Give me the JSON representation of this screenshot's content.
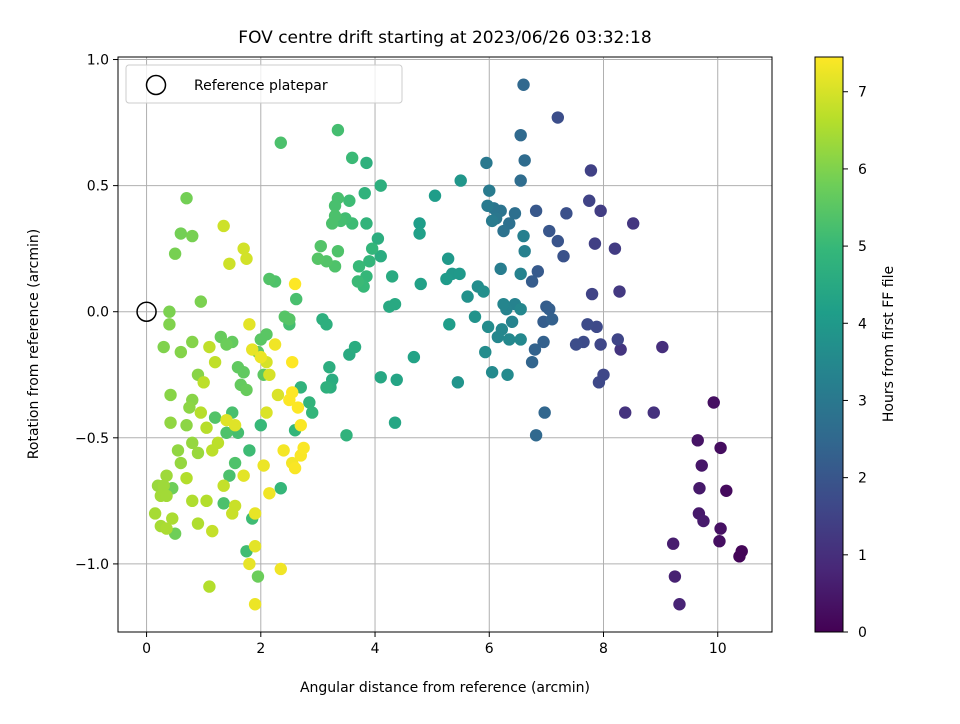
{
  "chart_data": {
    "type": "scatter",
    "title": "FOV centre drift starting at 2023/06/26 03:32:18",
    "xlabel": "Angular distance from reference (arcmin)",
    "ylabel": "Rotation from reference (arcmin)",
    "xlim": [
      -0.5,
      10.95
    ],
    "ylim": [
      -1.27,
      1.01
    ],
    "xticks": [
      0,
      2,
      4,
      6,
      8,
      10
    ],
    "xtick_labels": [
      "0",
      "2",
      "4",
      "6",
      "8",
      "10"
    ],
    "yticks": [
      -1.0,
      -0.5,
      0.0,
      0.5,
      1.0
    ],
    "ytick_labels": [
      "−1.0",
      "−0.5",
      "0.0",
      "0.5",
      "1.0"
    ],
    "grid": true,
    "legend": {
      "placement": "top-left",
      "entries": [
        "Reference platepar"
      ]
    },
    "reference_point": {
      "x": 0,
      "y": 0,
      "label": "Reference platepar"
    },
    "colorbar": {
      "label": "Hours from first FF file",
      "range": [
        0,
        7.45
      ],
      "ticks": [
        0,
        1,
        2,
        3,
        4,
        5,
        6,
        7
      ],
      "tick_labels": [
        "0",
        "1",
        "2",
        "3",
        "4",
        "5",
        "6",
        "7"
      ],
      "colormap": "viridis",
      "colors": [
        "#440154",
        "#482878",
        "#3e4989",
        "#31688e",
        "#26828e",
        "#1f9e89",
        "#35b779",
        "#6ece58",
        "#b5de2b",
        "#fde725"
      ]
    },
    "points": [
      [
        10.38,
        -0.97,
        0.1
      ],
      [
        10.42,
        -0.95,
        0.1
      ],
      [
        10.15,
        -0.71,
        0.2
      ],
      [
        9.93,
        -0.36,
        0.3
      ],
      [
        10.05,
        -0.54,
        0.25
      ],
      [
        10.05,
        -0.86,
        0.35
      ],
      [
        10.03,
        -0.91,
        0.3
      ],
      [
        9.65,
        -0.51,
        0.4
      ],
      [
        9.72,
        -0.61,
        0.45
      ],
      [
        9.68,
        -0.7,
        0.5
      ],
      [
        9.67,
        -0.8,
        0.5
      ],
      [
        9.75,
        -0.83,
        0.55
      ],
      [
        9.22,
        -0.92,
        0.6
      ],
      [
        9.25,
        -1.05,
        0.7
      ],
      [
        9.33,
        -1.16,
        0.75
      ],
      [
        9.03,
        -0.14,
        1.0
      ],
      [
        8.88,
        -0.4,
        1.05
      ],
      [
        8.38,
        -0.4,
        1.1
      ],
      [
        8.3,
        -0.15,
        1.15
      ],
      [
        8.52,
        0.35,
        1.2
      ],
      [
        8.28,
        0.08,
        1.25
      ],
      [
        8.2,
        0.25,
        1.3
      ],
      [
        7.95,
        0.4,
        1.35
      ],
      [
        7.85,
        0.27,
        1.4
      ],
      [
        7.78,
        0.56,
        1.45
      ],
      [
        7.75,
        0.44,
        1.5
      ],
      [
        7.8,
        0.07,
        1.5
      ],
      [
        8.25,
        -0.11,
        1.55
      ],
      [
        8.0,
        -0.25,
        1.6
      ],
      [
        7.92,
        -0.28,
        1.62
      ],
      [
        7.88,
        -0.06,
        1.65
      ],
      [
        7.72,
        -0.05,
        1.7
      ],
      [
        7.65,
        -0.12,
        1.72
      ],
      [
        7.52,
        -0.13,
        1.75
      ],
      [
        7.95,
        -0.13,
        1.6
      ],
      [
        7.2,
        0.77,
        1.8
      ],
      [
        7.35,
        0.39,
        1.85
      ],
      [
        7.3,
        0.22,
        1.9
      ],
      [
        7.2,
        0.28,
        1.95
      ],
      [
        7.05,
        0.32,
        2.0
      ],
      [
        6.82,
        0.4,
        2.05
      ],
      [
        6.85,
        0.16,
        2.1
      ],
      [
        6.75,
        0.12,
        2.15
      ],
      [
        6.95,
        -0.04,
        2.2
      ],
      [
        7.05,
        0.01,
        2.25
      ],
      [
        7.0,
        0.02,
        2.2
      ],
      [
        7.1,
        -0.03,
        2.3
      ],
      [
        6.95,
        -0.12,
        2.3
      ],
      [
        6.8,
        -0.15,
        2.35
      ],
      [
        6.75,
        -0.2,
        2.4
      ],
      [
        6.97,
        -0.4,
        2.45
      ],
      [
        6.82,
        -0.49,
        2.5
      ],
      [
        6.6,
        0.9,
        2.5
      ],
      [
        6.55,
        0.7,
        2.55
      ],
      [
        6.62,
        0.6,
        2.6
      ],
      [
        6.55,
        0.52,
        2.65
      ],
      [
        6.45,
        0.39,
        2.7
      ],
      [
        6.35,
        0.35,
        2.75
      ],
      [
        6.25,
        0.32,
        2.8
      ],
      [
        6.2,
        0.4,
        2.85
      ],
      [
        6.08,
        0.41,
        2.9
      ],
      [
        6.12,
        0.37,
        2.95
      ],
      [
        5.95,
        0.59,
        3.0
      ],
      [
        5.97,
        0.42,
        3.05
      ],
      [
        6.05,
        0.36,
        3.1
      ],
      [
        6.0,
        0.48,
        3.1
      ],
      [
        6.2,
        0.17,
        3.15
      ],
      [
        6.6,
        0.3,
        3.2
      ],
      [
        6.62,
        0.24,
        3.25
      ],
      [
        6.55,
        0.15,
        3.3
      ],
      [
        6.45,
        0.03,
        3.3
      ],
      [
        6.3,
        0.01,
        3.35
      ],
      [
        6.4,
        -0.04,
        3.35
      ],
      [
        6.25,
        0.03,
        3.4
      ],
      [
        6.22,
        -0.07,
        3.45
      ],
      [
        6.15,
        -0.1,
        3.45
      ],
      [
        6.35,
        -0.11,
        3.5
      ],
      [
        6.55,
        -0.11,
        3.5
      ],
      [
        6.55,
        0.01,
        3.45
      ],
      [
        6.05,
        -0.24,
        3.55
      ],
      [
        6.32,
        -0.25,
        3.55
      ],
      [
        5.93,
        -0.16,
        3.6
      ],
      [
        5.98,
        -0.06,
        3.6
      ],
      [
        5.8,
        0.1,
        3.65
      ],
      [
        5.9,
        0.08,
        3.7
      ],
      [
        5.62,
        0.06,
        3.75
      ],
      [
        5.75,
        -0.02,
        3.8
      ],
      [
        5.45,
        -0.28,
        3.85
      ],
      [
        5.5,
        0.52,
        3.9
      ],
      [
        5.35,
        0.15,
        3.95
      ],
      [
        5.28,
        0.21,
        4.0
      ],
      [
        5.48,
        0.15,
        4.0
      ],
      [
        5.25,
        0.13,
        4.05
      ],
      [
        5.3,
        -0.05,
        4.1
      ],
      [
        5.05,
        0.46,
        4.1
      ],
      [
        4.78,
        0.35,
        4.15
      ],
      [
        4.78,
        0.31,
        4.2
      ],
      [
        4.8,
        0.11,
        4.25
      ],
      [
        4.68,
        -0.18,
        4.3
      ],
      [
        4.38,
        -0.27,
        4.35
      ],
      [
        4.35,
        -0.44,
        4.4
      ],
      [
        4.1,
        -0.26,
        4.45
      ],
      [
        4.35,
        0.03,
        4.5
      ],
      [
        4.25,
        0.02,
        4.5
      ],
      [
        4.3,
        0.14,
        4.55
      ],
      [
        4.1,
        0.22,
        4.6
      ],
      [
        4.05,
        0.29,
        4.65
      ],
      [
        4.1,
        0.5,
        4.7
      ],
      [
        3.85,
        0.59,
        4.75
      ],
      [
        3.82,
        0.47,
        4.8
      ],
      [
        3.85,
        0.35,
        4.85
      ],
      [
        3.95,
        0.25,
        4.9
      ],
      [
        3.9,
        0.2,
        4.9
      ],
      [
        3.85,
        0.14,
        4.95
      ],
      [
        3.8,
        0.1,
        5.0
      ],
      [
        3.72,
        0.18,
        5.0
      ],
      [
        3.7,
        0.12,
        5.05
      ],
      [
        3.6,
        0.61,
        5.05
      ],
      [
        3.6,
        0.35,
        5.1
      ],
      [
        3.55,
        0.44,
        5.1
      ],
      [
        3.48,
        0.37,
        5.15
      ],
      [
        3.4,
        0.36,
        5.2
      ],
      [
        3.35,
        0.72,
        5.2
      ],
      [
        3.35,
        0.45,
        5.25
      ],
      [
        3.3,
        0.42,
        5.25
      ],
      [
        3.3,
        0.38,
        5.3
      ],
      [
        3.25,
        0.35,
        5.3
      ],
      [
        3.35,
        0.24,
        5.35
      ],
      [
        3.3,
        0.18,
        5.35
      ],
      [
        3.15,
        0.2,
        5.4
      ],
      [
        3.05,
        0.26,
        5.4
      ],
      [
        3.0,
        0.21,
        5.45
      ],
      [
        3.65,
        -0.14,
        4.6
      ],
      [
        3.55,
        -0.17,
        4.55
      ],
      [
        3.25,
        -0.27,
        4.6
      ],
      [
        3.22,
        -0.3,
        4.65
      ],
      [
        3.2,
        -0.22,
        4.65
      ],
      [
        3.15,
        -0.05,
        4.7
      ],
      [
        3.08,
        -0.03,
        4.7
      ],
      [
        3.15,
        -0.3,
        4.75
      ],
      [
        3.5,
        -0.49,
        4.8
      ],
      [
        2.7,
        -0.3,
        4.8
      ],
      [
        2.85,
        -0.36,
        4.85
      ],
      [
        2.9,
        -0.4,
        4.9
      ],
      [
        2.6,
        -0.47,
        4.9
      ],
      [
        2.35,
        -0.7,
        4.95
      ],
      [
        2.0,
        -0.45,
        5.0
      ],
      [
        1.8,
        -0.55,
        5.1
      ],
      [
        1.85,
        -0.82,
        5.1
      ],
      [
        1.75,
        -0.95,
        5.15
      ],
      [
        1.6,
        -0.48,
        5.2
      ],
      [
        1.5,
        -0.4,
        5.25
      ],
      [
        1.35,
        -0.76,
        5.3
      ],
      [
        1.45,
        -0.65,
        5.3
      ],
      [
        1.55,
        -0.6,
        5.35
      ],
      [
        1.4,
        -0.48,
        5.35
      ],
      [
        1.2,
        -0.42,
        5.4
      ],
      [
        2.5,
        -0.05,
        5.2
      ],
      [
        2.62,
        0.05,
        5.25
      ],
      [
        2.35,
        0.67,
        5.3
      ],
      [
        2.25,
        0.12,
        5.35
      ],
      [
        2.15,
        0.13,
        5.4
      ],
      [
        2.42,
        -0.02,
        5.45
      ],
      [
        2.5,
        -0.03,
        5.45
      ],
      [
        2.1,
        -0.09,
        5.5
      ],
      [
        2.0,
        -0.11,
        5.5
      ],
      [
        1.95,
        -0.16,
        5.55
      ],
      [
        2.05,
        -0.25,
        5.55
      ],
      [
        1.6,
        -0.22,
        5.6
      ],
      [
        1.7,
        -0.24,
        5.6
      ],
      [
        1.5,
        -0.12,
        5.65
      ],
      [
        1.65,
        -0.29,
        5.65
      ],
      [
        1.75,
        -0.31,
        5.7
      ],
      [
        1.3,
        -0.1,
        5.7
      ],
      [
        1.4,
        -0.13,
        5.75
      ],
      [
        1.95,
        -1.05,
        5.75
      ],
      [
        0.45,
        -0.7,
        5.8
      ],
      [
        0.5,
        -0.88,
        5.8
      ],
      [
        0.7,
        0.45,
        5.85
      ],
      [
        0.6,
        0.31,
        5.85
      ],
      [
        0.5,
        0.23,
        5.9
      ],
      [
        0.8,
        0.3,
        5.9
      ],
      [
        0.95,
        0.04,
        5.95
      ],
      [
        0.4,
        0.0,
        5.95
      ],
      [
        0.4,
        -0.05,
        6.0
      ],
      [
        0.3,
        -0.14,
        6.0
      ],
      [
        0.6,
        -0.16,
        6.05
      ],
      [
        0.8,
        -0.12,
        6.05
      ],
      [
        0.8,
        -0.35,
        6.1
      ],
      [
        0.42,
        -0.33,
        6.1
      ],
      [
        0.9,
        -0.25,
        6.1
      ],
      [
        0.75,
        -0.38,
        6.15
      ],
      [
        0.7,
        -0.45,
        6.15
      ],
      [
        0.42,
        -0.44,
        6.2
      ],
      [
        0.55,
        -0.55,
        6.2
      ],
      [
        0.6,
        -0.6,
        6.25
      ],
      [
        0.8,
        -0.52,
        6.25
      ],
      [
        0.9,
        -0.56,
        6.3
      ],
      [
        0.2,
        -0.69,
        6.3
      ],
      [
        0.3,
        -0.69,
        6.35
      ],
      [
        0.35,
        -0.65,
        6.35
      ],
      [
        0.25,
        -0.73,
        6.4
      ],
      [
        0.35,
        -0.73,
        6.4
      ],
      [
        0.15,
        -0.8,
        6.45
      ],
      [
        0.25,
        -0.85,
        6.45
      ],
      [
        0.35,
        -0.86,
        6.5
      ],
      [
        0.45,
        -0.82,
        6.5
      ],
      [
        0.8,
        -0.75,
        6.55
      ],
      [
        0.9,
        -0.84,
        6.55
      ],
      [
        1.05,
        -0.75,
        6.6
      ],
      [
        0.7,
        -0.66,
        6.6
      ],
      [
        1.1,
        -1.09,
        6.6
      ],
      [
        0.95,
        -0.4,
        6.65
      ],
      [
        1.05,
        -0.46,
        6.65
      ],
      [
        1.15,
        -0.55,
        6.7
      ],
      [
        1.25,
        -0.52,
        6.7
      ],
      [
        1.0,
        -0.28,
        6.7
      ],
      [
        1.1,
        -0.14,
        6.75
      ],
      [
        1.2,
        -0.2,
        6.75
      ],
      [
        1.15,
        -0.87,
        6.8
      ],
      [
        1.35,
        -0.69,
        6.8
      ],
      [
        1.55,
        -0.77,
        6.85
      ],
      [
        1.5,
        -0.8,
        6.85
      ],
      [
        1.35,
        0.34,
        6.9
      ],
      [
        1.45,
        0.19,
        6.9
      ],
      [
        1.7,
        0.25,
        6.95
      ],
      [
        1.75,
        0.21,
        6.95
      ],
      [
        2.1,
        -0.2,
        7.0
      ],
      [
        2.15,
        -0.25,
        7.0
      ],
      [
        2.1,
        -0.4,
        7.05
      ],
      [
        2.3,
        -0.33,
        7.05
      ],
      [
        1.4,
        -0.43,
        7.1
      ],
      [
        1.55,
        -0.45,
        7.1
      ],
      [
        1.7,
        -0.65,
        7.15
      ],
      [
        1.9,
        -0.93,
        7.15
      ],
      [
        1.8,
        -1.0,
        7.2
      ],
      [
        1.9,
        -0.8,
        7.2
      ],
      [
        1.9,
        -1.16,
        7.25
      ],
      [
        2.05,
        -0.61,
        7.25
      ],
      [
        2.15,
        -0.72,
        7.3
      ],
      [
        2.35,
        -1.02,
        7.3
      ],
      [
        2.4,
        -0.55,
        7.35
      ],
      [
        2.55,
        -0.6,
        7.35
      ],
      [
        2.6,
        -0.62,
        7.4
      ],
      [
        2.7,
        -0.57,
        7.4
      ],
      [
        2.75,
        -0.54,
        7.42
      ],
      [
        2.7,
        -0.45,
        7.42
      ],
      [
        2.5,
        -0.35,
        7.44
      ],
      [
        2.65,
        -0.38,
        7.44
      ],
      [
        2.55,
        -0.32,
        7.45
      ],
      [
        2.55,
        -0.2,
        7.45
      ],
      [
        2.6,
        0.11,
        7.45
      ],
      [
        2.25,
        -0.13,
        7.3
      ],
      [
        2.0,
        -0.18,
        7.25
      ],
      [
        1.85,
        -0.15,
        7.2
      ],
      [
        1.8,
        -0.05,
        7.15
      ]
    ]
  }
}
